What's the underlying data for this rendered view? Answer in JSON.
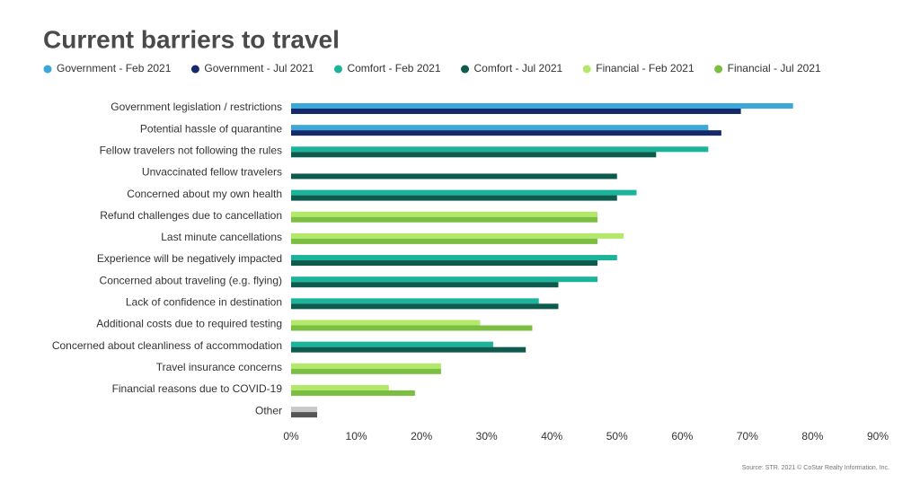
{
  "chart_data": {
    "type": "bar",
    "orientation": "horizontal",
    "title": "Current barriers to travel",
    "source": "Source: STR. 2021 © CoStar Realty Information, Inc.",
    "categories": [
      "Government legislation / restrictions",
      "Potential hassle of quarantine",
      "Fellow travelers not following the rules",
      "Unvaccinated fellow travelers",
      "Concerned about my own health",
      "Refund challenges due to cancellation",
      "Last minute cancellations",
      "Experience will be negatively impacted",
      "Concerned about traveling (e.g. flying)",
      "Lack of confidence in destination",
      "Additional costs due to required testing",
      "Concerned about cleanliness of accommodation",
      "Travel insurance concerns",
      "Financial reasons due to COVID-19",
      "Other"
    ],
    "series": [
      {
        "name": "Government - Feb 2021",
        "color": "#3aa8d8",
        "values": [
          77,
          64,
          null,
          null,
          null,
          null,
          null,
          null,
          null,
          null,
          null,
          null,
          null,
          null,
          null
        ]
      },
      {
        "name": "Government - Jul 2021",
        "color": "#16296a",
        "values": [
          69,
          66,
          null,
          null,
          null,
          null,
          null,
          null,
          null,
          null,
          null,
          null,
          null,
          null,
          null
        ]
      },
      {
        "name": "Comfort - Feb 2021",
        "color": "#1cb39b",
        "values": [
          null,
          null,
          64,
          null,
          53,
          null,
          null,
          50,
          47,
          38,
          null,
          31,
          null,
          null,
          null
        ]
      },
      {
        "name": "Comfort - Jul 2021",
        "color": "#0d5b4c",
        "values": [
          null,
          null,
          56,
          50,
          50,
          null,
          null,
          47,
          41,
          41,
          null,
          36,
          null,
          null,
          null
        ]
      },
      {
        "name": "Financial - Feb 2021",
        "color": "#b3e86a",
        "values": [
          null,
          null,
          null,
          null,
          null,
          47,
          51,
          null,
          null,
          null,
          29,
          null,
          23,
          15,
          null
        ]
      },
      {
        "name": "Financial - Jul 2021",
        "color": "#7bbf42",
        "values": [
          null,
          null,
          null,
          null,
          null,
          47,
          47,
          null,
          null,
          null,
          37,
          null,
          23,
          19,
          null
        ]
      }
    ],
    "unlabeled_series": [
      {
        "color": "#c8c8c8",
        "values": [
          null,
          null,
          null,
          null,
          null,
          null,
          null,
          null,
          null,
          null,
          null,
          null,
          null,
          null,
          4
        ]
      },
      {
        "color": "#555555",
        "values": [
          null,
          null,
          null,
          null,
          null,
          null,
          null,
          null,
          null,
          null,
          null,
          null,
          null,
          null,
          4
        ]
      }
    ],
    "xlim": [
      0,
      90
    ],
    "xticks": [
      {
        "value": 0,
        "label": "0%"
      },
      {
        "value": 10,
        "label": "10%"
      },
      {
        "value": 20,
        "label": "20%"
      },
      {
        "value": 30,
        "label": "30%"
      },
      {
        "value": 40,
        "label": "40%"
      },
      {
        "value": 50,
        "label": "50%"
      },
      {
        "value": 60,
        "label": "60%"
      },
      {
        "value": 70,
        "label": "70%"
      },
      {
        "value": 80,
        "label": "80%"
      },
      {
        "value": 90,
        "label": "90%"
      }
    ],
    "grid": false,
    "legend": "top"
  }
}
